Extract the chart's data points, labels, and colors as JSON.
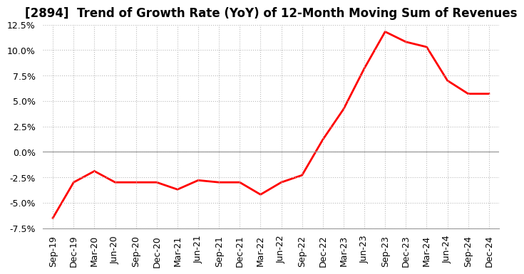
{
  "title": "[2894]  Trend of Growth Rate (YoY) of 12-Month Moving Sum of Revenues",
  "line_color": "#FF0000",
  "background_color": "#FFFFFF",
  "grid_color": "#BBBBBB",
  "ylim": [
    -0.075,
    0.125
  ],
  "yticks": [
    -0.075,
    -0.05,
    -0.025,
    0.0,
    0.025,
    0.05,
    0.075,
    0.1,
    0.125
  ],
  "x_labels": [
    "Sep-19",
    "Dec-19",
    "Mar-20",
    "Jun-20",
    "Sep-20",
    "Dec-20",
    "Mar-21",
    "Jun-21",
    "Sep-21",
    "Dec-21",
    "Mar-22",
    "Jun-22",
    "Sep-22",
    "Dec-22",
    "Mar-23",
    "Jun-23",
    "Sep-23",
    "Dec-23",
    "Mar-24",
    "Jun-24",
    "Sep-24",
    "Dec-24"
  ],
  "values": [
    -0.065,
    -0.03,
    -0.019,
    -0.03,
    -0.03,
    -0.03,
    -0.037,
    -0.028,
    -0.03,
    -0.03,
    -0.042,
    -0.03,
    -0.023,
    0.012,
    0.042,
    0.082,
    0.118,
    0.108,
    0.103,
    0.07,
    0.057,
    0.057
  ],
  "title_fontsize": 12,
  "tick_fontsize": 9,
  "line_width": 2.0
}
